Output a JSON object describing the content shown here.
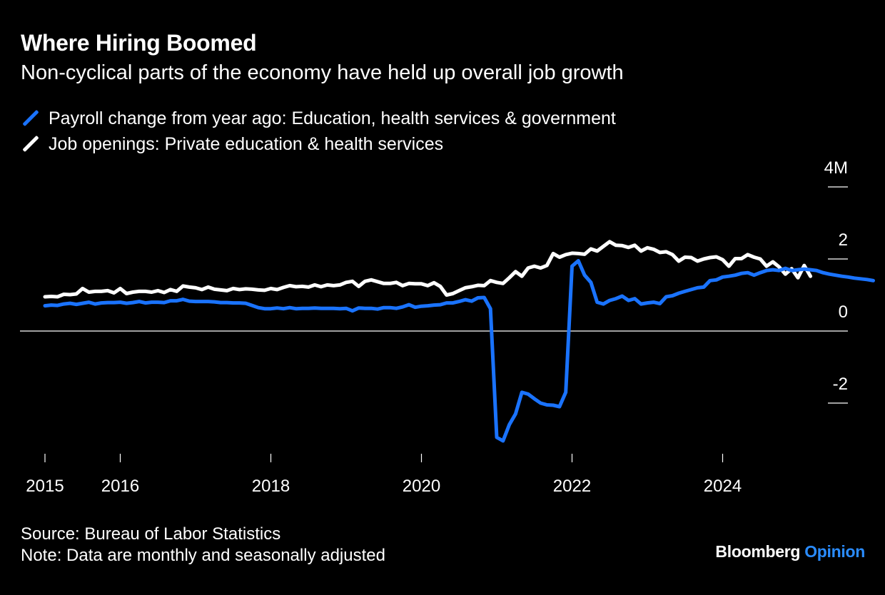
{
  "title": "Where Hiring Boomed",
  "subtitle": "Non-cyclical parts of the economy have held up overall job growth",
  "source": "Source: Bureau of Labor Statistics",
  "note": "Note: Data are monthly and seasonally adjusted",
  "logo": {
    "brand": "Bloomberg",
    "section": "Opinion"
  },
  "colors": {
    "payroll": "#1a73ff",
    "openings": "#ffffff",
    "background": "#000000",
    "logo_accent": "#2a8cff"
  },
  "chart_data": {
    "type": "line",
    "x_ticks": [
      2015,
      2016,
      2018,
      2020,
      2022,
      2024
    ],
    "x_tick_labels": [
      "2015",
      "2016",
      "2018",
      "2020",
      "2022",
      "2024"
    ],
    "y_ticks": [
      -2,
      0,
      2,
      4
    ],
    "y_tick_labels": [
      "-2",
      "0",
      "2",
      "4M"
    ],
    "ylim": [
      -3.2,
      4.3
    ],
    "xlim": [
      2014.75,
      2026.2
    ],
    "grid": false,
    "legend_position": "top-left",
    "series": [
      {
        "name": "Payroll change from year ago: Education, health services & government",
        "color": "#1a73ff",
        "x_start": 2015.0,
        "step": 0.0833333,
        "values": [
          0.7,
          0.72,
          0.71,
          0.75,
          0.77,
          0.74,
          0.77,
          0.8,
          0.75,
          0.78,
          0.79,
          0.79,
          0.8,
          0.77,
          0.79,
          0.82,
          0.78,
          0.8,
          0.8,
          0.79,
          0.84,
          0.84,
          0.88,
          0.83,
          0.82,
          0.82,
          0.82,
          0.81,
          0.79,
          0.79,
          0.78,
          0.78,
          0.77,
          0.71,
          0.65,
          0.62,
          0.62,
          0.64,
          0.62,
          0.65,
          0.62,
          0.63,
          0.63,
          0.64,
          0.63,
          0.63,
          0.63,
          0.62,
          0.63,
          0.56,
          0.64,
          0.63,
          0.63,
          0.61,
          0.65,
          0.65,
          0.63,
          0.67,
          0.73,
          0.66,
          0.69,
          0.7,
          0.72,
          0.73,
          0.78,
          0.78,
          0.82,
          0.87,
          0.83,
          0.92,
          0.93,
          0.62,
          -2.95,
          -3.05,
          -2.6,
          -2.3,
          -1.7,
          -1.75,
          -1.88,
          -2.0,
          -2.05,
          -2.06,
          -2.1,
          -1.7,
          1.8,
          1.95,
          1.55,
          1.35,
          0.8,
          0.75,
          0.85,
          0.9,
          0.97,
          0.85,
          0.9,
          0.75,
          0.78,
          0.8,
          0.76,
          0.95,
          0.98,
          1.05,
          1.1,
          1.15,
          1.2,
          1.22,
          1.4,
          1.42,
          1.5,
          1.52,
          1.55,
          1.6,
          1.62,
          1.55,
          1.62,
          1.68,
          1.7,
          1.68,
          1.74,
          1.68,
          1.7,
          1.72,
          1.7,
          1.68,
          1.62,
          1.58,
          1.55,
          1.52,
          1.5,
          1.47,
          1.45,
          1.43,
          1.4
        ]
      },
      {
        "name": "Job openings: Private education & health services",
        "color": "#ffffff",
        "x_start": 2015.0,
        "step": 0.0833333,
        "values": [
          0.95,
          0.96,
          0.95,
          1.02,
          1.01,
          1.03,
          1.18,
          1.08,
          1.1,
          1.1,
          1.12,
          1.06,
          1.18,
          1.04,
          1.08,
          1.1,
          1.1,
          1.08,
          1.12,
          1.07,
          1.15,
          1.1,
          1.25,
          1.22,
          1.2,
          1.15,
          1.22,
          1.16,
          1.14,
          1.12,
          1.18,
          1.15,
          1.17,
          1.16,
          1.14,
          1.13,
          1.18,
          1.15,
          1.21,
          1.26,
          1.23,
          1.24,
          1.22,
          1.28,
          1.23,
          1.28,
          1.26,
          1.28,
          1.35,
          1.38,
          1.24,
          1.38,
          1.42,
          1.37,
          1.32,
          1.32,
          1.35,
          1.26,
          1.32,
          1.31,
          1.31,
          1.26,
          1.34,
          1.24,
          1.0,
          1.04,
          1.12,
          1.2,
          1.23,
          1.27,
          1.26,
          1.4,
          1.35,
          1.32,
          1.48,
          1.65,
          1.52,
          1.75,
          1.8,
          1.75,
          1.82,
          2.15,
          2.05,
          2.12,
          2.16,
          2.15,
          2.13,
          2.28,
          2.22,
          2.35,
          2.48,
          2.38,
          2.37,
          2.32,
          2.38,
          2.22,
          2.31,
          2.27,
          2.18,
          2.2,
          2.12,
          1.94,
          2.05,
          2.04,
          1.94,
          2.0,
          2.04,
          2.06,
          1.98,
          1.8,
          2.01,
          2.01,
          2.12,
          2.05,
          2.0,
          1.8,
          1.92,
          1.78,
          1.58,
          1.73,
          1.48,
          1.82,
          1.52
        ]
      }
    ]
  }
}
